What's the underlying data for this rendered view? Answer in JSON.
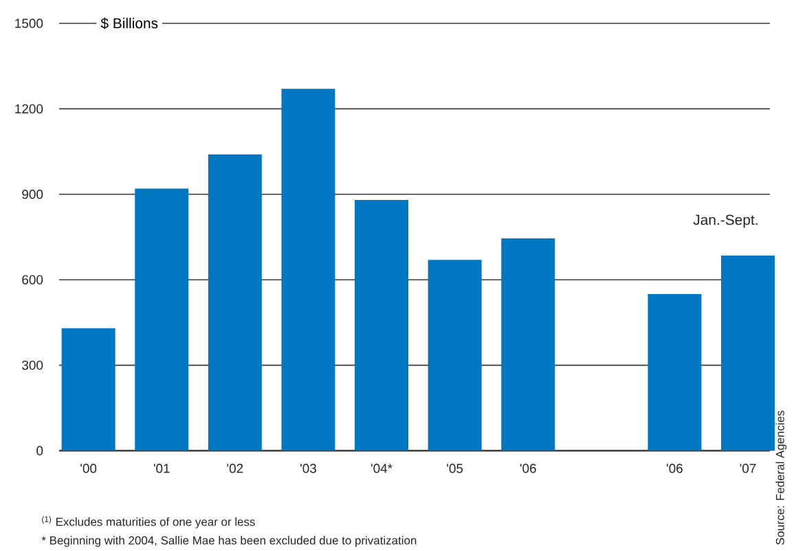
{
  "chart_data": {
    "type": "bar",
    "ylabel": "$ Billions",
    "categories": [
      "'00",
      "'01",
      "'02",
      "'03",
      "'04*",
      "'05",
      "'06",
      null,
      "'06",
      "'07"
    ],
    "values": [
      430,
      920,
      1040,
      1270,
      880,
      670,
      745,
      null,
      550,
      685
    ],
    "color": "#0077c0",
    "ylim": [
      0,
      1500
    ],
    "yticks": [
      0,
      300,
      600,
      900,
      1200,
      1500
    ],
    "grid": "y",
    "annotations": [
      "Jan.-Sept.",
      "$^{(1)}$ Excludes maturities of one year or less",
      "* Beginning with 2004, Sallie Mae has been excluded due to privatization",
      "Source: Federal Agencies"
    ]
  }
}
